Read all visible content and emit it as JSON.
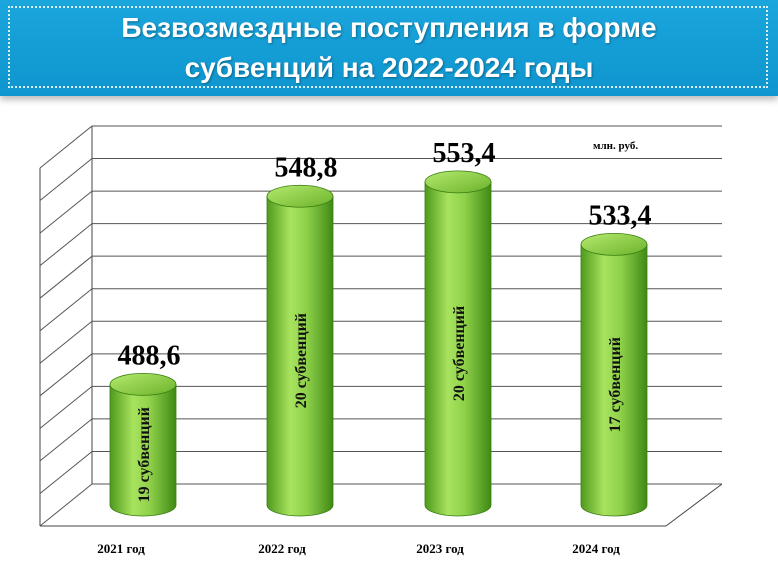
{
  "header": {
    "title_line1": "Безвозмездные поступления в форме",
    "title_line2": "субвенций на 2022-2024 годы"
  },
  "chart_data": {
    "type": "bar",
    "title": "Безвозмездные поступления в форме субвенций на 2022-2024 годы",
    "unit_label": "млн. руб.",
    "categories": [
      "2021 год",
      "2022 год",
      "2023 год",
      "2024 год"
    ],
    "values": [
      488.6,
      548.8,
      553.4,
      533.4
    ],
    "value_labels": [
      "488,6",
      "548,8",
      "553,4",
      "533,4"
    ],
    "bar_text": [
      "19 субвенций",
      "20 субвенций",
      "20 субвенций",
      "17 субвенций"
    ],
    "ylim": [
      450,
      570
    ],
    "grid": true,
    "bar_color": "#8fd14a"
  }
}
